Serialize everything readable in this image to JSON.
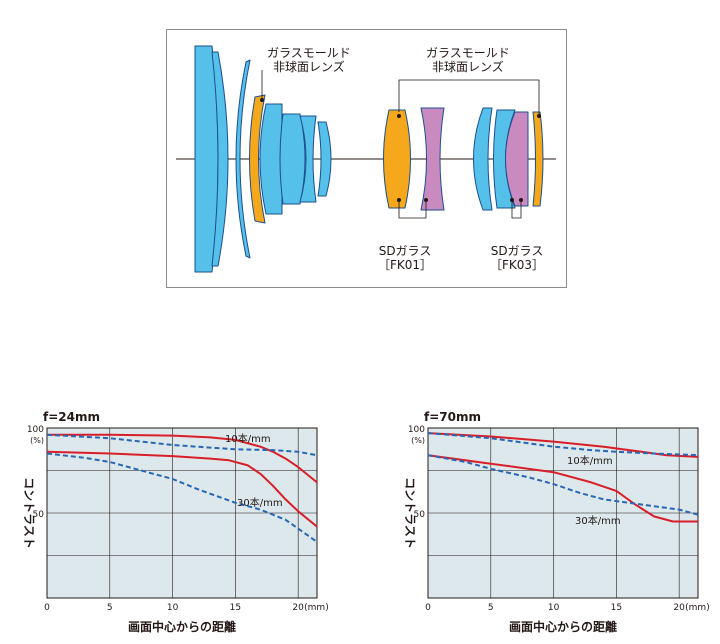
{
  "lens_diagram": {
    "label_mold_1_line1": "ガラスモールド",
    "label_mold_1_line2": "非球面レンズ",
    "label_mold_2_line1": "ガラスモールド",
    "label_mold_2_line2": "非球面レンズ",
    "label_sd_1_line1": "SDガラス",
    "label_sd_1_line2": "［FK01］",
    "label_sd_2_line1": "SDガラス",
    "label_sd_2_line2": "［FK03］",
    "colors": {
      "standard": "#55c0ea",
      "aspherical_mold": "#f5a81c",
      "sd_fk03": "#c98ac0",
      "outline": "#1d4f8c"
    }
  },
  "chart_data": [
    {
      "type": "line",
      "title": "f=24mm",
      "xlabel": "画面中心からの距離",
      "ylabel": "コントラスト",
      "x_unit": "(mm)",
      "y_unit": "(%)",
      "xlim": [
        0,
        21.5
      ],
      "ylim": [
        0,
        100
      ],
      "xticks": [
        "0",
        "5",
        "10",
        "15",
        "20"
      ],
      "yticks": [
        "100",
        "50"
      ],
      "grid": true,
      "annotations": [
        "10本/mm",
        "30本/mm"
      ],
      "series": [
        {
          "name": "10本/mm",
          "style": "solid",
          "color": "#d81e28",
          "x": [
            0,
            5,
            10,
            13,
            15,
            17,
            18,
            19,
            20,
            21.5
          ],
          "y": [
            96,
            96,
            95.5,
            94.5,
            93,
            89,
            86,
            82,
            77,
            68
          ]
        },
        {
          "name": "10本/mm",
          "style": "dashed",
          "color": "#2767b4",
          "x": [
            0,
            5,
            10,
            13,
            15,
            18,
            20,
            21.5
          ],
          "y": [
            96,
            94,
            90,
            88.5,
            87.5,
            87,
            86,
            84
          ]
        },
        {
          "name": "30本/mm",
          "style": "solid",
          "color": "#d81e28",
          "x": [
            0,
            5,
            10,
            13,
            14.5,
            16,
            17,
            18,
            19,
            20,
            21.5
          ],
          "y": [
            86,
            85,
            83.5,
            82,
            81,
            78,
            73,
            66,
            58,
            51,
            42
          ]
        },
        {
          "name": "30本/mm",
          "style": "dashed",
          "color": "#2767b4",
          "x": [
            0,
            3,
            5,
            8,
            10,
            12,
            15,
            17,
            19,
            21.5
          ],
          "y": [
            85,
            82.5,
            80,
            74,
            70,
            64,
            56,
            52,
            46,
            33
          ]
        }
      ]
    },
    {
      "type": "line",
      "title": "f=70mm",
      "xlabel": "画面中心からの距離",
      "ylabel": "コントラスト",
      "x_unit": "(mm)",
      "y_unit": "(%)",
      "xlim": [
        0,
        21.5
      ],
      "ylim": [
        0,
        100
      ],
      "xticks": [
        "0",
        "5",
        "10",
        "15",
        "20"
      ],
      "yticks": [
        "100",
        "50"
      ],
      "grid": true,
      "annotations": [
        "10本/mm",
        "30本/mm"
      ],
      "series": [
        {
          "name": "10本/mm",
          "style": "solid",
          "color": "#d81e28",
          "x": [
            0,
            5,
            10,
            14,
            17,
            19,
            21.5
          ],
          "y": [
            97,
            95,
            92,
            89,
            86,
            84,
            83
          ]
        },
        {
          "name": "10本/mm",
          "style": "dashed",
          "color": "#2767b4",
          "x": [
            0,
            5,
            10,
            13,
            15,
            18,
            21.5
          ],
          "y": [
            97,
            94,
            89,
            87,
            86,
            85,
            84
          ]
        },
        {
          "name": "30本/mm",
          "style": "solid",
          "color": "#d81e28",
          "x": [
            0,
            2,
            5,
            10,
            13,
            15,
            16.5,
            18,
            19.5,
            21.5
          ],
          "y": [
            84,
            82,
            79,
            74,
            68,
            63,
            55,
            48,
            45,
            45
          ]
        },
        {
          "name": "30本/mm",
          "style": "dashed",
          "color": "#2767b4",
          "x": [
            0,
            3,
            5,
            8,
            10,
            12,
            14,
            16,
            18,
            20,
            21.5
          ],
          "y": [
            84,
            80,
            76,
            71,
            67,
            62,
            58,
            56,
            54,
            52,
            49
          ]
        }
      ]
    }
  ]
}
